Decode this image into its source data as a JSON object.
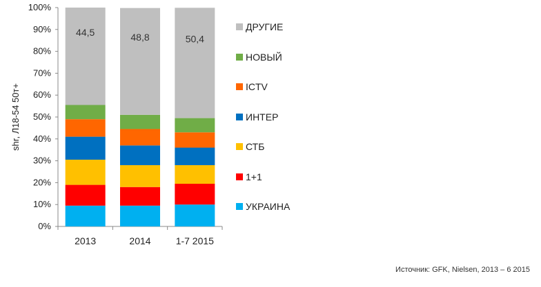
{
  "chart_data": {
    "type": "bar",
    "stacked": true,
    "ylabel": "shr, Л18-54 50т+",
    "ylim": [
      0,
      100
    ],
    "y_ticks": [
      "0%",
      "10%",
      "20%",
      "30%",
      "40%",
      "50%",
      "60%",
      "70%",
      "80%",
      "90%",
      "100%"
    ],
    "categories": [
      "2013",
      "2014",
      "1-7 2015"
    ],
    "series": [
      {
        "name": "УКРАИНА",
        "color": "#00b0f0",
        "values": [
          9.5,
          9.5,
          10.0
        ]
      },
      {
        "name": "1+1",
        "color": "#ff0000",
        "values": [
          9.5,
          8.5,
          9.5
        ]
      },
      {
        "name": "СТБ",
        "color": "#ffc000",
        "values": [
          11.5,
          10.0,
          8.5
        ]
      },
      {
        "name": "ИНТЕР",
        "color": "#0070c0",
        "values": [
          10.5,
          9.0,
          8.0
        ]
      },
      {
        "name": "ICTV",
        "color": "#ff6600",
        "values": [
          8.0,
          7.5,
          7.0
        ]
      },
      {
        "name": "НОВЫЙ",
        "color": "#70ad47",
        "values": [
          6.5,
          6.5,
          6.5
        ]
      },
      {
        "name": "ДРУГИЕ",
        "color": "#bfbfbf",
        "values": [
          44.5,
          48.8,
          50.4
        ]
      }
    ],
    "data_labels": {
      "series": "ДРУГИЕ",
      "values": [
        "44,5",
        "48,8",
        "50,4"
      ]
    },
    "legend_position": "right",
    "legend_order": [
      "ДРУГИЕ",
      "НОВЫЙ",
      "ICTV",
      "ИНТЕР",
      "СТБ",
      "1+1",
      "УКРАИНА"
    ],
    "grid": false
  },
  "source_note": "Источник: GFK, Nielsen, 2013 – 6 2015"
}
